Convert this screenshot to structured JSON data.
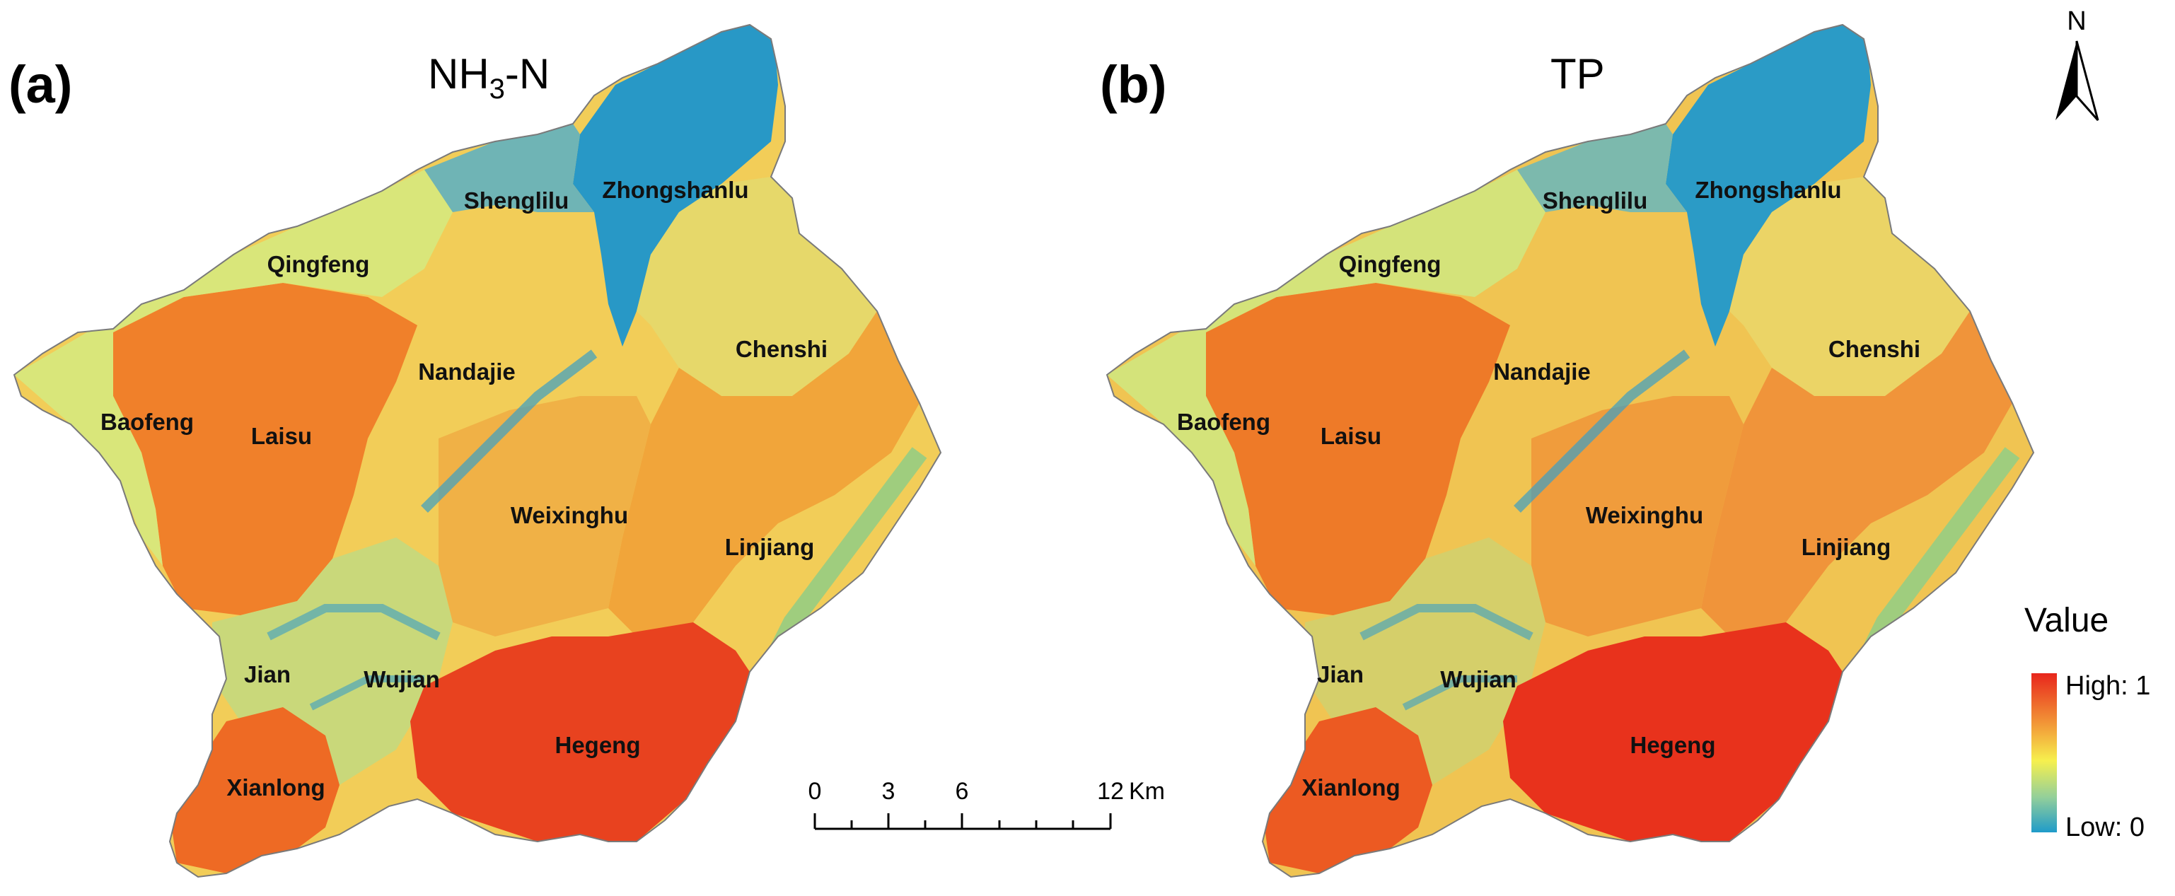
{
  "panels": [
    {
      "tag": "(a)",
      "title_main": "NH",
      "title_sub": "3",
      "title_tail": "-N"
    },
    {
      "tag": "(b)",
      "title_main": "TP",
      "title_sub": "",
      "title_tail": ""
    }
  ],
  "districts": [
    {
      "name": "Zhongshanlu",
      "level": 0.05
    },
    {
      "name": "Shenglilu",
      "level": 0.35
    },
    {
      "name": "Qingfeng",
      "level": 0.45
    },
    {
      "name": "Chenshi",
      "level": 0.55
    },
    {
      "name": "Nandajie",
      "level": 0.6
    },
    {
      "name": "Baofeng",
      "level": 0.4
    },
    {
      "name": "Laisu",
      "level": 0.85
    },
    {
      "name": "Weixinghu",
      "level": 0.65
    },
    {
      "name": "Linjiang",
      "level": 0.72
    },
    {
      "name": "Jian",
      "level": 0.55
    },
    {
      "name": "Wujian",
      "level": 0.5
    },
    {
      "name": "Hegeng",
      "level": 0.92
    },
    {
      "name": "Xianlong",
      "level": 0.88
    }
  ],
  "scale_bar": {
    "ticks": [
      "0",
      "3",
      "6",
      "12"
    ],
    "unit": "Km"
  },
  "north_arrow": {
    "label": "N",
    "icon": "north-arrow-icon"
  },
  "legend": {
    "title": "Value",
    "high_label": "High: 1",
    "low_label": "Low: 0",
    "high_color": "#e8261c",
    "mid_color": "#f6f04e",
    "low_color": "#1f9bc9"
  }
}
